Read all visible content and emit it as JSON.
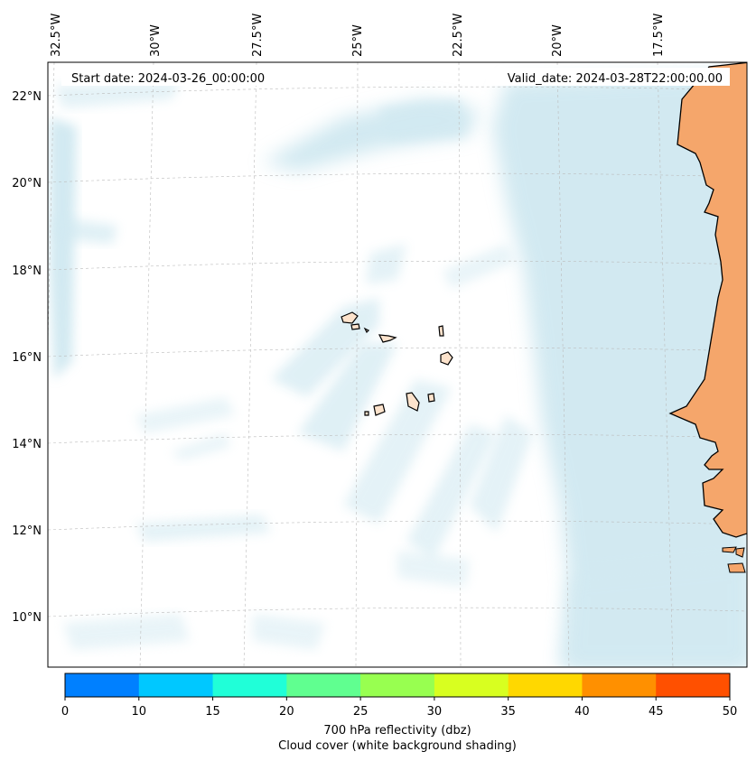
{
  "header": {
    "start_date": "Start date: 2024-03-26_00:00:00",
    "valid_date": "Valid_date: 2024-03-28T22:00:00.00"
  },
  "longitude_labels": [
    "32.5°W",
    "30°W",
    "27.5°W",
    "25°W",
    "22.5°W",
    "20°W",
    "17.5°W"
  ],
  "latitude_labels": [
    "22°N",
    "20°N",
    "18°N",
    "16°N",
    "14°N",
    "12°N",
    "10°N"
  ],
  "colorbar": {
    "ticks": [
      "0",
      "10",
      "15",
      "20",
      "25",
      "30",
      "35",
      "40",
      "45",
      "50"
    ],
    "colors": [
      "#0080ff",
      "#00c8ff",
      "#20ffd8",
      "#60ff90",
      "#98ff50",
      "#d8ff20",
      "#ffd800",
      "#ff9000",
      "#ff5000"
    ],
    "label": "700 hPa reflectivity (dbz)",
    "sublabel": "Cloud cover (white background shading)"
  },
  "colors": {
    "land": "#f5a66b",
    "island": "#fde3cc",
    "cloud": "#add8e6",
    "grid": "#bbbbbb"
  }
}
